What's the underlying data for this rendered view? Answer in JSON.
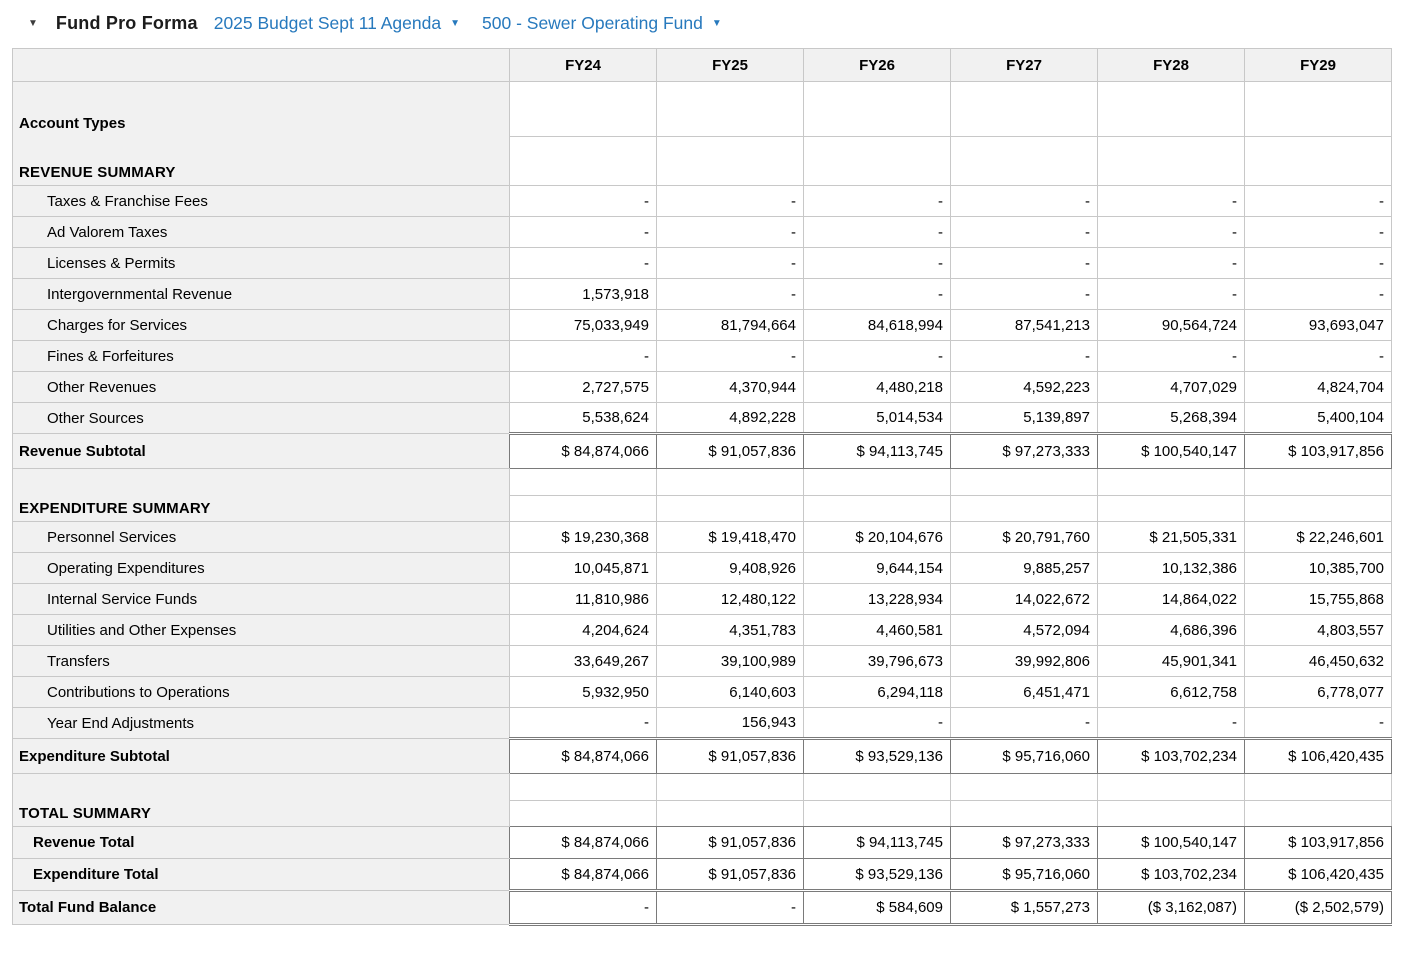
{
  "toolbar": {
    "title": "Fund Pro Forma",
    "budget_dropdown": "2025 Budget Sept 11 Agenda",
    "fund_dropdown": "500 - Sewer Operating Fund",
    "caret_glyph": "▼"
  },
  "colors": {
    "accent_blue": "#2779bd",
    "panel_gray": "#f1f1f1",
    "grid_border": "#c8c8c8",
    "strong_border": "#7a7a7a"
  },
  "table": {
    "columns": [
      "FY24",
      "FY25",
      "FY26",
      "FY27",
      "FY28",
      "FY29"
    ],
    "rows": [
      {
        "type": "grouptop",
        "label": "Account Types",
        "values": null
      },
      {
        "type": "section tall",
        "label": "REVENUE SUMMARY",
        "values": null
      },
      {
        "type": "item",
        "label": "Taxes & Franchise Fees",
        "values": [
          "-",
          "-",
          "-",
          "-",
          "-",
          "-"
        ]
      },
      {
        "type": "item",
        "label": "Ad Valorem Taxes",
        "values": [
          "-",
          "-",
          "-",
          "-",
          "-",
          "-"
        ]
      },
      {
        "type": "item",
        "label": "Licenses & Permits",
        "values": [
          "-",
          "-",
          "-",
          "-",
          "-",
          "-"
        ]
      },
      {
        "type": "item",
        "label": "Intergovernmental Revenue",
        "values": [
          "1,573,918",
          "-",
          "-",
          "-",
          "-",
          "-"
        ]
      },
      {
        "type": "item",
        "label": "Charges for Services",
        "values": [
          "75,033,949",
          "81,794,664",
          "84,618,994",
          "87,541,213",
          "90,564,724",
          "93,693,047"
        ]
      },
      {
        "type": "item",
        "label": "Fines & Forfeitures",
        "values": [
          "-",
          "-",
          "-",
          "-",
          "-",
          "-"
        ]
      },
      {
        "type": "item",
        "label": "Other Revenues",
        "values": [
          "2,727,575",
          "4,370,944",
          "4,480,218",
          "4,592,223",
          "4,707,029",
          "4,824,704"
        ]
      },
      {
        "type": "item",
        "label": "Other Sources",
        "values": [
          "5,538,624",
          "4,892,228",
          "5,014,534",
          "5,139,897",
          "5,268,394",
          "5,400,104"
        ]
      },
      {
        "type": "subtotal",
        "label": "Revenue Subtotal",
        "values": [
          "$ 84,874,066",
          "$ 91,057,836",
          "$ 94,113,745",
          "$ 97,273,333",
          "$ 100,540,147",
          "$ 103,917,856"
        ]
      },
      {
        "type": "spacer",
        "label": "",
        "values": null
      },
      {
        "type": "section",
        "label": "EXPENDITURE SUMMARY",
        "values": null
      },
      {
        "type": "item",
        "label": "Personnel Services",
        "values": [
          "$ 19,230,368",
          "$ 19,418,470",
          "$ 20,104,676",
          "$ 20,791,760",
          "$ 21,505,331",
          "$ 22,246,601"
        ]
      },
      {
        "type": "item",
        "label": "Operating Expenditures",
        "values": [
          "10,045,871",
          "9,408,926",
          "9,644,154",
          "9,885,257",
          "10,132,386",
          "10,385,700"
        ]
      },
      {
        "type": "item",
        "label": "Internal Service Funds",
        "values": [
          "11,810,986",
          "12,480,122",
          "13,228,934",
          "14,022,672",
          "14,864,022",
          "15,755,868"
        ]
      },
      {
        "type": "item",
        "label": "Utilities and Other Expenses",
        "values": [
          "4,204,624",
          "4,351,783",
          "4,460,581",
          "4,572,094",
          "4,686,396",
          "4,803,557"
        ]
      },
      {
        "type": "item",
        "label": "Transfers",
        "values": [
          "33,649,267",
          "39,100,989",
          "39,796,673",
          "39,992,806",
          "45,901,341",
          "46,450,632"
        ]
      },
      {
        "type": "item",
        "label": "Contributions to Operations",
        "values": [
          "5,932,950",
          "6,140,603",
          "6,294,118",
          "6,451,471",
          "6,612,758",
          "6,778,077"
        ]
      },
      {
        "type": "item",
        "label": "Year End Adjustments",
        "values": [
          "-",
          "156,943",
          "-",
          "-",
          "-",
          "-"
        ]
      },
      {
        "type": "subtotal",
        "label": "Expenditure Subtotal",
        "values": [
          "$ 84,874,066",
          "$ 91,057,836",
          "$ 93,529,136",
          "$ 95,716,060",
          "$ 103,702,234",
          "$ 106,420,435"
        ]
      },
      {
        "type": "spacer",
        "label": "",
        "values": null
      },
      {
        "type": "section",
        "label": "TOTAL SUMMARY",
        "values": null
      },
      {
        "type": "total",
        "label": "Revenue Total",
        "values": [
          "$ 84,874,066",
          "$ 91,057,836",
          "$ 94,113,745",
          "$ 97,273,333",
          "$ 100,540,147",
          "$ 103,917,856"
        ]
      },
      {
        "type": "total",
        "label": "Expenditure Total",
        "values": [
          "$ 84,874,066",
          "$ 91,057,836",
          "$ 93,529,136",
          "$ 95,716,060",
          "$ 103,702,234",
          "$ 106,420,435"
        ]
      },
      {
        "type": "grand",
        "label": "Total Fund Balance",
        "values": [
          "-",
          "-",
          "$ 584,609",
          "$ 1,557,273",
          "($ 3,162,087)",
          "($ 2,502,579)"
        ]
      }
    ]
  }
}
